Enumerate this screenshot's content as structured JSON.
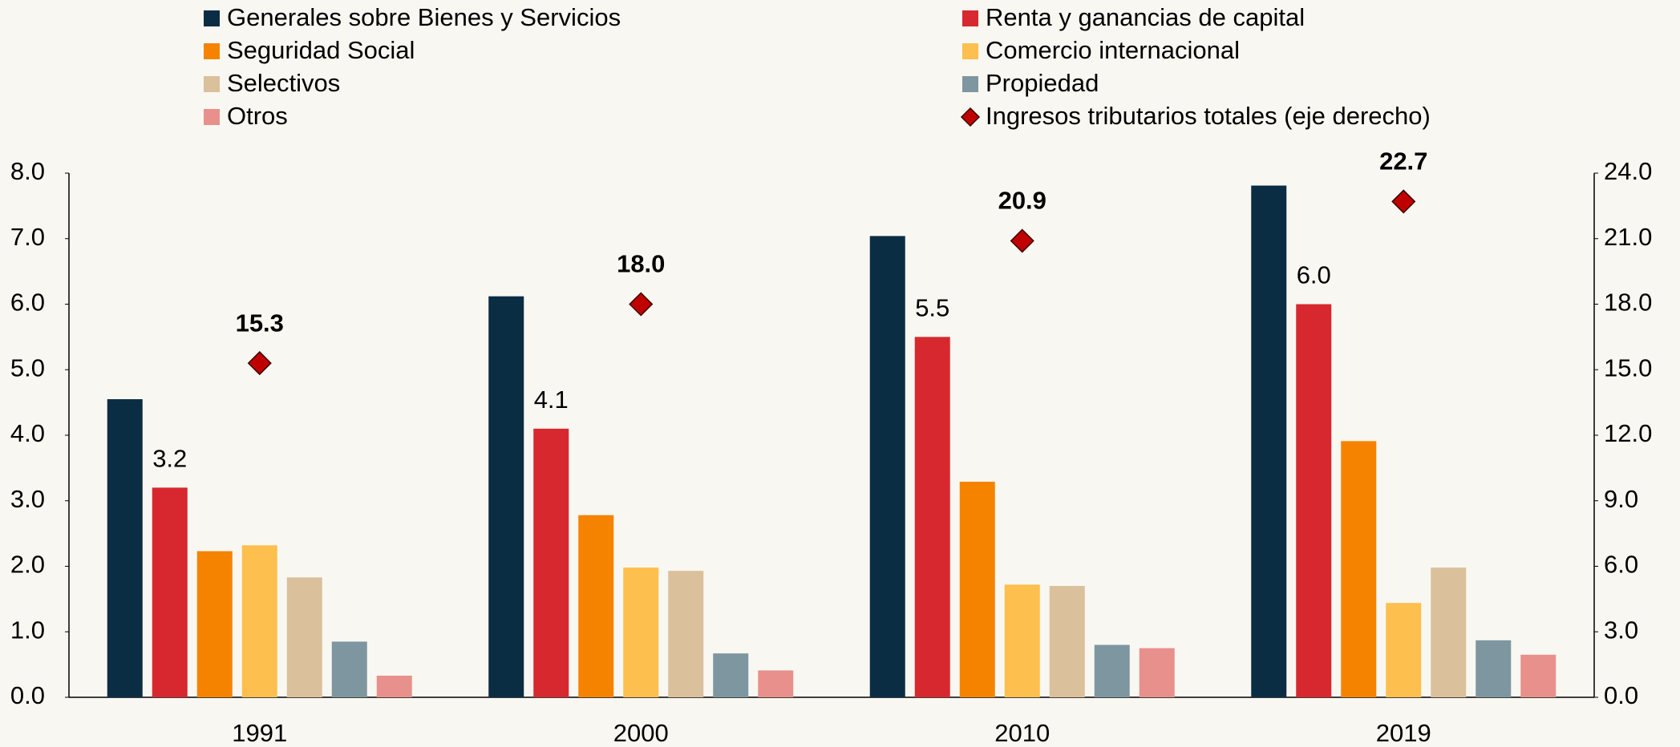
{
  "chart_data": {
    "type": "bar",
    "categories": [
      "1991",
      "2000",
      "2010",
      "2019"
    ],
    "series": [
      {
        "name": "Generales sobre Bienes y Servicios",
        "color": "#0b2d44",
        "values": [
          4.55,
          6.12,
          7.04,
          7.81
        ]
      },
      {
        "name": "Renta y ganancias de capital",
        "color": "#d7282f",
        "values": [
          3.2,
          4.1,
          5.5,
          6.0
        ],
        "value_labels": [
          "3.2",
          "4.1",
          "5.5",
          "6.0"
        ]
      },
      {
        "name": "Seguridad Social",
        "color": "#f58300",
        "values": [
          2.23,
          2.78,
          3.29,
          3.91
        ]
      },
      {
        "name": "Comercio internacional",
        "color": "#fdbf4d",
        "values": [
          2.32,
          1.98,
          1.72,
          1.44
        ]
      },
      {
        "name": "Selectivos",
        "color": "#dbc09c",
        "values": [
          1.83,
          1.93,
          1.7,
          1.98
        ]
      },
      {
        "name": "Propiedad",
        "color": "#7e96a0",
        "values": [
          0.85,
          0.67,
          0.8,
          0.87
        ]
      },
      {
        "name": "Otros",
        "color": "#e8908c",
        "values": [
          0.33,
          0.41,
          0.75,
          0.65
        ]
      },
      {
        "name": "Ingresos tributarios totales (eje derecho)",
        "color": "#c00000",
        "type": "diamond",
        "axis": "y2",
        "values": [
          15.3,
          18.0,
          20.9,
          22.7
        ],
        "value_labels": [
          "15.3",
          "18.0",
          "20.9",
          "22.7"
        ]
      }
    ],
    "ylim": [
      0,
      8
    ],
    "yticks": [
      {
        "value": 0,
        "label": "0.0"
      },
      {
        "value": 1,
        "label": "1.0"
      },
      {
        "value": 2,
        "label": "2.0"
      },
      {
        "value": 3,
        "label": "3.0"
      },
      {
        "value": 4,
        "label": "4.0"
      },
      {
        "value": 5,
        "label": "5.0"
      },
      {
        "value": 6,
        "label": "6.0"
      },
      {
        "value": 7,
        "label": "7.0"
      },
      {
        "value": 8,
        "label": "8.0"
      }
    ],
    "y2lim": [
      0,
      24
    ],
    "y2ticks": [
      {
        "value": 0,
        "label": "0.0"
      },
      {
        "value": 3,
        "label": "3.0"
      },
      {
        "value": 6,
        "label": "6.0"
      },
      {
        "value": 9,
        "label": "9.0"
      },
      {
        "value": 12,
        "label": "12.0"
      },
      {
        "value": 15,
        "label": "15.0"
      },
      {
        "value": 18,
        "label": "18.0"
      },
      {
        "value": 21,
        "label": "21.0"
      },
      {
        "value": 24,
        "label": "24.0"
      }
    ],
    "grid": false
  }
}
